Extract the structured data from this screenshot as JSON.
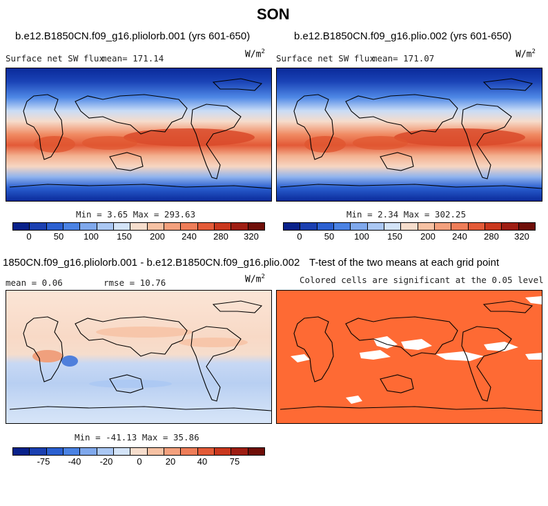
{
  "figure_title": "SON",
  "colors": {
    "abs_scale": [
      "#08218a",
      "#1a3fb0",
      "#2a5fd0",
      "#4a82e3",
      "#7fa8ec",
      "#aac7f3",
      "#d3e3f7",
      "#f6ddcc",
      "#f6c1a3",
      "#f3a07d",
      "#ee7d58",
      "#e35a37",
      "#c9371d",
      "#9e1d12",
      "#6f0e08"
    ],
    "diff_scale": [
      "#08218a",
      "#1a3fb0",
      "#2a5fd0",
      "#4a82e3",
      "#7fa8ec",
      "#aac7f3",
      "#d3e3f7",
      "#f6ddcc",
      "#f6c1a3",
      "#f3a07d",
      "#ee7d58",
      "#e35a37",
      "#c9371d",
      "#9e1d12",
      "#6f0e08"
    ],
    "significant": "#fe6a34"
  },
  "chart_data": [
    {
      "type": "heatmap",
      "title": "b.e12.B1850CN.f09_g16.pliolorb.001 (yrs 601-650)",
      "variable": "Surface net SW flux",
      "stat_label": "mean= 171.14",
      "units": "W/m",
      "units_exp": "2",
      "min_max": "Min =    3.65 Max =  293.63",
      "colorbar_ticks": [
        "0",
        "50",
        "100",
        "150",
        "200",
        "240",
        "280",
        "320"
      ]
    },
    {
      "type": "heatmap",
      "title": "b.e12.B1850CN.f09_g16.plio.002 (yrs 601-650)",
      "variable": "Surface net SW flux",
      "stat_label": "mean= 171.07",
      "units": "W/m",
      "units_exp": "2",
      "min_max": "Min =    2.34 Max =  302.25",
      "colorbar_ticks": [
        "0",
        "50",
        "100",
        "150",
        "200",
        "240",
        "280",
        "320"
      ]
    },
    {
      "type": "heatmap",
      "title": "1850CN.f09_g16.pliolorb.001 - b.e12.B1850CN.f09_g16.plio.002",
      "mean_label": "mean =    0.06",
      "rmse_label": "rmse =   10.76",
      "units": "W/m",
      "units_exp": "2",
      "min_max": "Min = -41.13 Max =  35.86",
      "colorbar_ticks": [
        "-75",
        "-40",
        "-20",
        "0",
        "20",
        "40",
        "75"
      ]
    },
    {
      "type": "heatmap",
      "title": "T-test of the two means at each grid point",
      "subtitle": "Colored cells are significant at the 0.05 level"
    }
  ]
}
